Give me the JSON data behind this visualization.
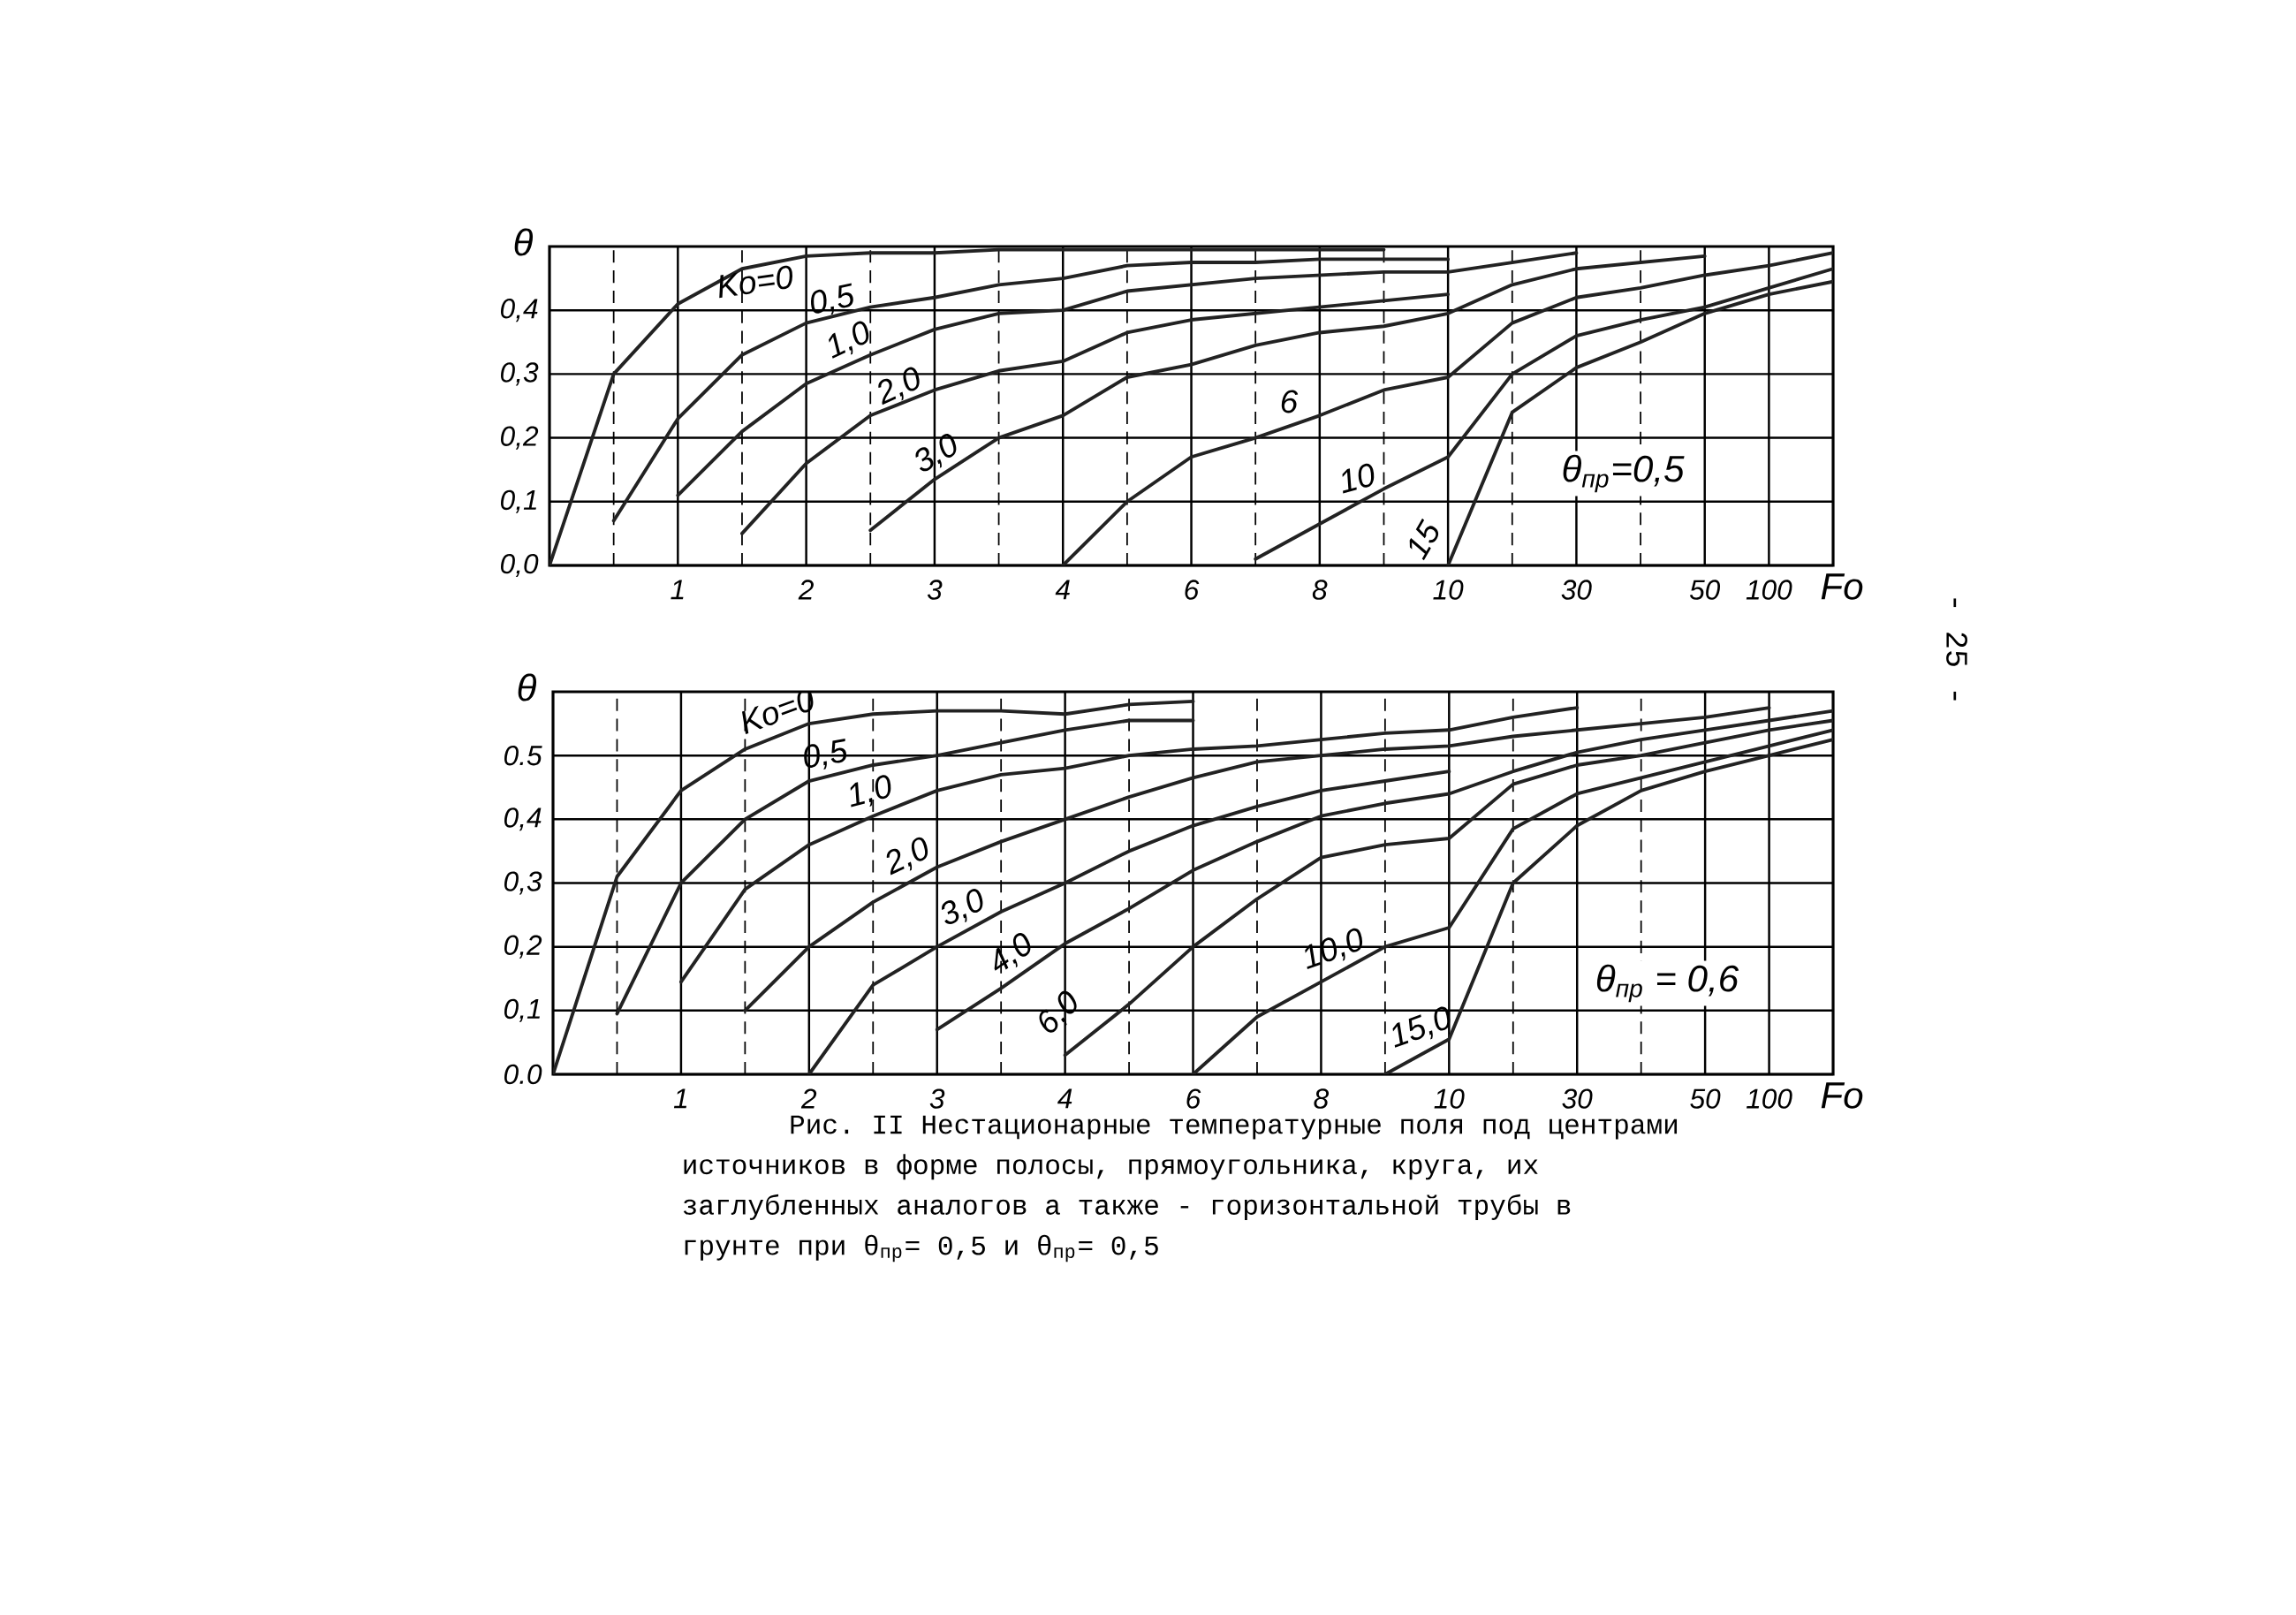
{
  "chart_data": [
    {
      "type": "line",
      "xlabel": "Fo",
      "ylabel": "θ",
      "categories": [
        null,
        null,
        "1",
        null,
        "2",
        null,
        "3",
        null,
        "4",
        null,
        "6",
        null,
        "8",
        null,
        "10",
        null,
        "30",
        null,
        "50",
        "100",
        null
      ],
      "ylim": [
        0,
        0.5
      ],
      "yticks": [
        {
          "value": 0,
          "label": "0,0"
        },
        {
          "value": 0.1,
          "label": "0,1"
        },
        {
          "value": 0.2,
          "label": "0,2"
        },
        {
          "value": 0.3,
          "label": "0,3"
        },
        {
          "value": 0.4,
          "label": "0,4"
        }
      ],
      "grid": true,
      "series": [
        {
          "name": "Ko=0",
          "color": "#222222",
          "values": [
            0,
            0.3,
            0.41,
            0.465,
            0.485,
            0.49,
            0.49,
            0.495,
            0.495,
            0.495,
            0.495,
            0.495,
            0.495,
            0.495,
            null,
            null,
            null,
            null,
            null,
            null,
            null
          ]
        },
        {
          "name": "0,5",
          "color": "#222222",
          "values": [
            null,
            0.07,
            0.23,
            0.33,
            0.38,
            0.405,
            0.42,
            0.44,
            0.45,
            0.47,
            0.475,
            0.475,
            0.48,
            0.48,
            0.48,
            null,
            null,
            null,
            null,
            null,
            null
          ]
        },
        {
          "name": "1,0",
          "color": "#222222",
          "values": [
            null,
            null,
            0.11,
            0.21,
            0.285,
            0.33,
            0.37,
            0.395,
            0.4,
            0.43,
            0.44,
            0.45,
            0.455,
            0.46,
            0.46,
            0.475,
            0.49,
            null,
            null,
            null,
            null
          ]
        },
        {
          "name": "2,0",
          "color": "#222222",
          "values": [
            null,
            null,
            null,
            0.05,
            0.16,
            0.235,
            0.275,
            0.305,
            0.32,
            0.365,
            0.385,
            0.395,
            0.405,
            0.415,
            0.425,
            null,
            null,
            null,
            null,
            null,
            null
          ]
        },
        {
          "name": "3,0",
          "color": "#222222",
          "values": [
            null,
            null,
            null,
            null,
            null,
            0.055,
            0.135,
            0.2,
            0.235,
            0.295,
            0.315,
            0.345,
            0.365,
            0.375,
            0.395,
            0.44,
            0.465,
            0.475,
            0.485,
            null,
            null
          ]
        },
        {
          "name": "6",
          "color": "#222222",
          "values": [
            null,
            null,
            null,
            null,
            null,
            null,
            null,
            null,
            0,
            0.1,
            0.17,
            0.2,
            0.235,
            0.275,
            0.295,
            0.38,
            0.42,
            0.435,
            0.455,
            0.47,
            0.49
          ]
        },
        {
          "name": "10",
          "color": "#222222",
          "values": [
            null,
            null,
            null,
            null,
            null,
            null,
            null,
            null,
            null,
            null,
            null,
            0.01,
            0.065,
            0.12,
            0.17,
            0.3,
            0.36,
            0.385,
            0.405,
            0.435,
            0.465
          ]
        },
        {
          "name": "15",
          "color": "#222222",
          "values": [
            null,
            null,
            null,
            null,
            null,
            null,
            null,
            null,
            null,
            null,
            null,
            null,
            null,
            null,
            0,
            0.24,
            0.31,
            0.35,
            0.395,
            0.425,
            0.445
          ]
        }
      ],
      "annotations": [
        "θ$_{пр}$=0,5"
      ]
    },
    {
      "type": "line",
      "xlabel": "Fo",
      "ylabel": "θ",
      "categories": [
        null,
        null,
        "1",
        null,
        "2",
        null,
        "3",
        null,
        "4",
        null,
        "6",
        null,
        "8",
        null,
        "10",
        null,
        "30",
        null,
        "50",
        "100",
        null
      ],
      "ylim": [
        0,
        0.6
      ],
      "yticks": [
        {
          "value": 0,
          "label": "0.0"
        },
        {
          "value": 0.1,
          "label": "0,1"
        },
        {
          "value": 0.2,
          "label": "0,2"
        },
        {
          "value": 0.3,
          "label": "0,3"
        },
        {
          "value": 0.4,
          "label": "0,4"
        },
        {
          "value": 0.5,
          "label": "0.5"
        }
      ],
      "grid": true,
      "series": [
        {
          "name": "Ko=0",
          "color": "#222222",
          "values": [
            0,
            0.31,
            0.445,
            0.51,
            0.55,
            0.565,
            0.57,
            0.57,
            0.565,
            0.58,
            0.585,
            null,
            null,
            null,
            null,
            null,
            null,
            null,
            null,
            null,
            null
          ]
        },
        {
          "name": "0,5",
          "color": "#222222",
          "values": [
            null,
            0.095,
            0.3,
            0.4,
            0.46,
            0.485,
            0.5,
            0.52,
            0.54,
            0.555,
            0.555,
            null,
            null,
            null,
            null,
            null,
            null,
            null,
            null,
            null,
            null
          ]
        },
        {
          "name": "1,0",
          "color": "#222222",
          "values": [
            null,
            null,
            0.145,
            0.29,
            0.36,
            0.405,
            0.445,
            0.47,
            0.48,
            0.5,
            0.51,
            0.515,
            0.525,
            0.535,
            0.54,
            0.56,
            0.575,
            null,
            null,
            null,
            null
          ]
        },
        {
          "name": "2,0",
          "color": "#222222",
          "values": [
            null,
            null,
            null,
            0.1,
            0.2,
            0.27,
            0.325,
            0.365,
            0.4,
            0.435,
            0.465,
            0.49,
            0.5,
            0.51,
            0.515,
            0.53,
            0.54,
            0.55,
            0.56,
            0.575,
            null
          ]
        },
        {
          "name": "3,0",
          "color": "#222222",
          "values": [
            null,
            null,
            null,
            null,
            0,
            0.14,
            0.2,
            0.255,
            0.3,
            0.35,
            0.39,
            0.42,
            0.445,
            0.46,
            0.475,
            null,
            null,
            null,
            null,
            null,
            null
          ]
        },
        {
          "name": "4,0",
          "color": "#222222",
          "values": [
            null,
            null,
            null,
            null,
            null,
            null,
            0.07,
            0.135,
            0.205,
            0.26,
            0.32,
            0.365,
            0.405,
            0.425,
            0.44,
            0.475,
            0.505,
            0.525,
            0.54,
            0.555,
            0.57
          ]
        },
        {
          "name": "6,0",
          "color": "#222222",
          "values": [
            null,
            null,
            null,
            null,
            null,
            null,
            null,
            null,
            0.03,
            0.11,
            0.2,
            0.275,
            0.34,
            0.36,
            0.37,
            0.455,
            0.485,
            0.5,
            0.52,
            0.54,
            0.555
          ]
        },
        {
          "name": "10,0",
          "color": "#222222",
          "values": [
            null,
            null,
            null,
            null,
            null,
            null,
            null,
            null,
            null,
            null,
            0,
            0.09,
            0.145,
            0.2,
            0.23,
            0.385,
            0.44,
            0.465,
            0.49,
            0.515,
            0.54
          ]
        },
        {
          "name": "15,0",
          "color": "#222222",
          "values": [
            null,
            null,
            null,
            null,
            null,
            null,
            null,
            null,
            null,
            null,
            null,
            null,
            null,
            0,
            0.055,
            0.3,
            0.39,
            0.445,
            0.475,
            0.5,
            0.525
          ]
        }
      ],
      "annotations": [
        "θ$_{пр}$ = 0,6",
        "Рис. II Нестационарные температурные поля под центрами источников в форме полосы, прямоугольника, круга, их заглубленных аналогов а также - горизонтальной трубы в грунте при θ$_{пр}$= 0,5 и θ$_{пр}$= 0,5",
        "- 25 -"
      ]
    }
  ]
}
